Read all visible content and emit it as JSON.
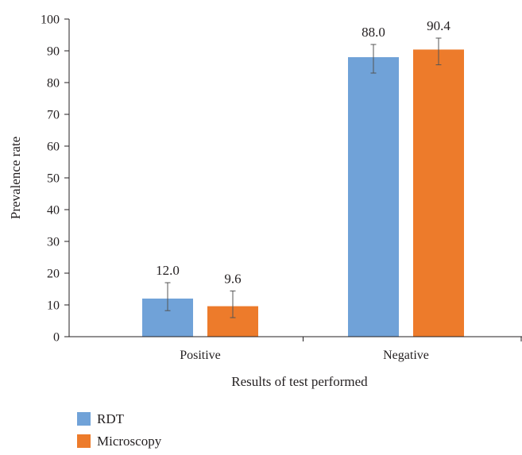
{
  "chart_data": {
    "type": "bar",
    "title": "",
    "xlabel": "Results of test performed",
    "ylabel": "Prevalence rate",
    "ylim": [
      0,
      100
    ],
    "yticks": [
      0,
      10,
      20,
      30,
      40,
      50,
      60,
      70,
      80,
      90,
      100
    ],
    "categories": [
      "Positive",
      "Negative"
    ],
    "grid": false,
    "legend_position": "bottom-left",
    "series": [
      {
        "name": "RDT",
        "color": "#70a2d8",
        "values": [
          12.0,
          88.0
        ],
        "labels": [
          "12.0",
          "88.0"
        ],
        "error_low": [
          8.2,
          83.0
        ],
        "error_high": [
          17.0,
          92.0
        ]
      },
      {
        "name": "Microscopy",
        "color": "#ed7b2b",
        "values": [
          9.6,
          90.4
        ],
        "labels": [
          "9.6",
          "90.4"
        ],
        "error_low": [
          6.0,
          85.6
        ],
        "error_high": [
          14.4,
          94.0
        ]
      }
    ]
  }
}
